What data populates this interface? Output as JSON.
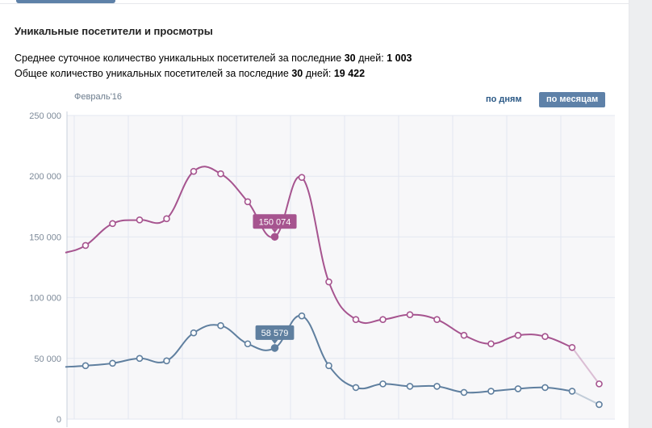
{
  "header": {
    "title": "Уникальные посетители и просмотры"
  },
  "stats": {
    "daily_label": "Среднее суточное количество уникальных посетителей за последние",
    "daily_days": "30",
    "daily_suffix": "дней:",
    "daily_value": "1 003",
    "total_label": "Общее количество уникальных посетителей за последние",
    "total_days": "30",
    "total_suffix": "дней:",
    "total_value": "19 422"
  },
  "controls": {
    "month_label": "Февраль'16",
    "by_days": "по дням",
    "by_months": "по месяцам",
    "active": "by_months"
  },
  "colors": {
    "views": "#a6548f",
    "visitors": "#5f7f9f",
    "grid": "#e3e7f1",
    "plot_bg": "#f7f7f9"
  },
  "chart_data": {
    "type": "line",
    "ylim": [
      0,
      250000
    ],
    "yticks": [
      "250 000",
      "200 000",
      "150 000",
      "100 000",
      "50 000",
      "0"
    ],
    "x": [
      1,
      2,
      3,
      4,
      5,
      6,
      7,
      8,
      9,
      10,
      11,
      12,
      13,
      14,
      15,
      16,
      17,
      18,
      19,
      20
    ],
    "series": [
      {
        "key": "views",
        "values": [
          143000,
          161000,
          164000,
          165000,
          204000,
          202000,
          179000,
          150074,
          199000,
          113000,
          82000,
          82000,
          86000,
          82000,
          69000,
          62000,
          69000,
          68000,
          59000,
          29000
        ],
        "highlight_index": 7,
        "highlight_label": "150 074",
        "start_value": 137000
      },
      {
        "key": "visitors",
        "values": [
          44000,
          46000,
          50000,
          48000,
          71000,
          77000,
          62000,
          58579,
          85000,
          44000,
          26000,
          29000,
          27000,
          27000,
          22000,
          23000,
          25000,
          26000,
          23000,
          12000
        ],
        "highlight_index": 7,
        "highlight_label": "58 579",
        "start_value": 43000
      }
    ]
  }
}
